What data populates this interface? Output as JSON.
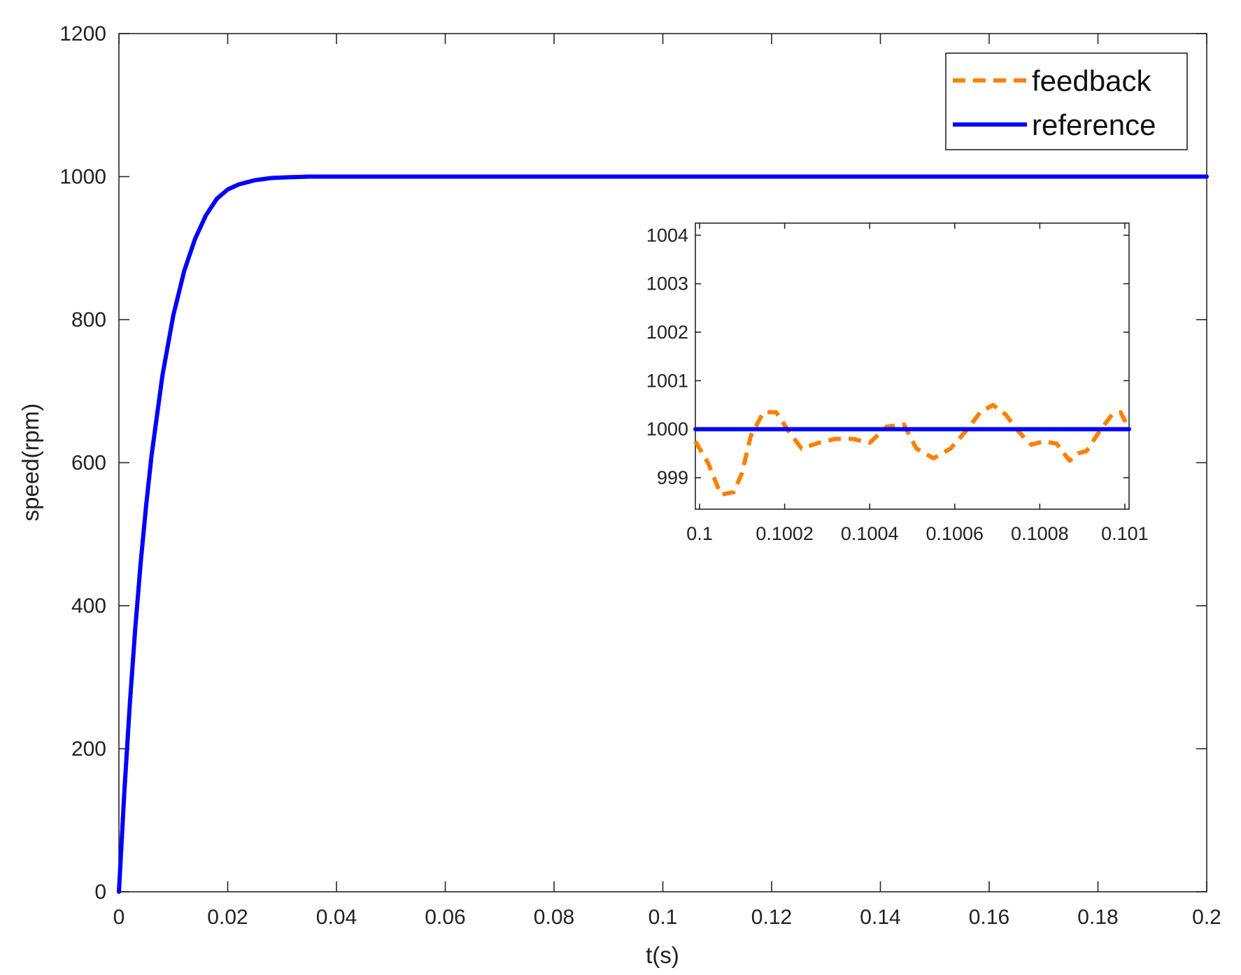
{
  "chart_data": [
    {
      "type": "line",
      "role": "main",
      "title": "",
      "xlabel": "t(s)",
      "ylabel": "speed(rpm)",
      "xlim": [
        0,
        0.2
      ],
      "ylim": [
        0,
        1200
      ],
      "xticks": [
        0,
        0.02,
        0.04,
        0.06,
        0.08,
        0.1,
        0.12,
        0.14,
        0.16,
        0.18,
        0.2
      ],
      "xtick_labels": [
        "0",
        "0.02",
        "0.04",
        "0.06",
        "0.08",
        "0.1",
        "0.12",
        "0.14",
        "0.16",
        "0.18",
        "0.2"
      ],
      "yticks": [
        0,
        200,
        400,
        600,
        800,
        1000,
        1200
      ],
      "ytick_labels": [
        "0",
        "200",
        "400",
        "600",
        "800",
        "1000",
        "1200"
      ],
      "grid": false,
      "legend": "top-right",
      "series": [
        {
          "name": "feedback",
          "color": "#FF8000",
          "style": "dashed",
          "x": [
            0,
            0.001,
            0.002,
            0.003,
            0.004,
            0.005,
            0.006,
            0.008,
            0.01,
            0.012,
            0.014,
            0.016,
            0.018,
            0.02,
            0.022,
            0.025,
            0.028,
            0.031,
            0.035,
            0.04,
            0.05,
            0.06,
            0.08,
            0.1,
            0.12,
            0.14,
            0.16,
            0.18,
            0.2
          ],
          "y": [
            0,
            140,
            262,
            368,
            460,
            540,
            610,
            722,
            806,
            868,
            913,
            946,
            969,
            982,
            989,
            995,
            998,
            999,
            1000,
            1000,
            1000,
            1000,
            1000,
            1000,
            1000,
            1000,
            1000,
            1000,
            1000
          ]
        },
        {
          "name": "reference",
          "color": "#0000FF",
          "style": "solid",
          "x": [
            0,
            0.001,
            0.002,
            0.003,
            0.004,
            0.005,
            0.006,
            0.008,
            0.01,
            0.012,
            0.014,
            0.016,
            0.018,
            0.02,
            0.022,
            0.025,
            0.028,
            0.031,
            0.035,
            0.04,
            0.05,
            0.06,
            0.08,
            0.1,
            0.12,
            0.14,
            0.16,
            0.18,
            0.2
          ],
          "y": [
            0,
            140,
            262,
            368,
            460,
            540,
            610,
            722,
            806,
            868,
            913,
            946,
            969,
            982,
            989,
            995,
            998,
            999,
            1000,
            1000,
            1000,
            1000,
            1000,
            1000,
            1000,
            1000,
            1000,
            1000,
            1000
          ]
        }
      ]
    },
    {
      "type": "line",
      "role": "inset",
      "title": "",
      "xlabel": "",
      "ylabel": "",
      "xlim": [
        0.09999,
        0.10101
      ],
      "ylim": [
        998.35,
        1004.25
      ],
      "xticks": [
        0.1,
        0.1002,
        0.1004,
        0.1006,
        0.1008,
        0.101
      ],
      "xtick_labels": [
        "0.1",
        "0.1002",
        "0.1004",
        "0.1006",
        "0.1008",
        "0.101"
      ],
      "yticks": [
        999,
        1000,
        1001,
        1002,
        1003,
        1004
      ],
      "ytick_labels": [
        "999",
        "1000",
        "1001",
        "1002",
        "1003",
        "1004"
      ],
      "grid": false,
      "series": [
        {
          "name": "feedback",
          "color": "#FF8000",
          "style": "dashed",
          "x": [
            0.09999,
            0.10002,
            0.10005,
            0.10008,
            0.1001,
            0.10012,
            0.10015,
            0.10018,
            0.10021,
            0.10024,
            0.10028,
            0.10032,
            0.10036,
            0.1004,
            0.10044,
            0.10048,
            0.10051,
            0.10055,
            0.10059,
            0.10063,
            0.10066,
            0.10069,
            0.10072,
            0.10075,
            0.10078,
            0.10081,
            0.10084,
            0.10087,
            0.10089,
            0.10091,
            0.10094,
            0.10097,
            0.10099,
            0.10101
          ],
          "y": [
            999.75,
            999.3,
            998.65,
            998.7,
            999.1,
            999.85,
            1000.35,
            1000.35,
            999.95,
            999.6,
            999.72,
            999.8,
            999.8,
            999.72,
            1000.05,
            1000.1,
            999.6,
            999.4,
            999.6,
            1000.0,
            1000.35,
            1000.5,
            1000.3,
            999.95,
            999.68,
            999.75,
            999.7,
            999.35,
            999.5,
            999.55,
            999.95,
            1000.3,
            1000.35,
            1000.0
          ]
        },
        {
          "name": "reference",
          "color": "#0000FF",
          "style": "solid",
          "x": [
            0.09999,
            0.10101
          ],
          "y": [
            1000,
            1000
          ]
        }
      ]
    }
  ],
  "legend": {
    "items": [
      {
        "label": "feedback",
        "color": "#FF8000",
        "style": "dashed"
      },
      {
        "label": "reference",
        "color": "#0000FF",
        "style": "solid"
      }
    ]
  }
}
